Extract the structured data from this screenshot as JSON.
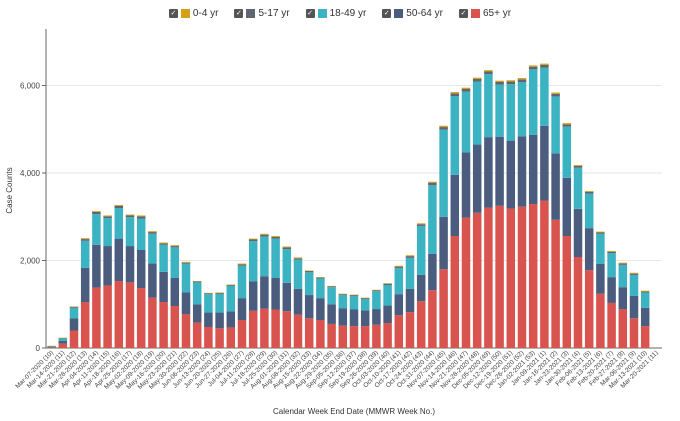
{
  "chart_data": {
    "type": "bar",
    "stacked": true,
    "title": "",
    "xlabel": "Calendar Week End Date (MMWR Week No.)",
    "ylabel": "Case Counts",
    "ylim": [
      0,
      7200
    ],
    "yticks": [
      0,
      2000,
      4000,
      6000
    ],
    "ytick_labels": [
      "0",
      "2,000",
      "4,000",
      "6,000"
    ],
    "grid": true,
    "legend_position": "top-center",
    "categories": [
      "Mar-07-2020 (10)",
      "Mar-14-2020 (11)",
      "Mar-21-2020 (12)",
      "Mar-28-2020 (13)",
      "Apr-04-2020 (14)",
      "Apr-11-2020 (15)",
      "Apr-18-2020 (16)",
      "Apr-25-2020 (17)",
      "May-02-2020 (18)",
      "May-09-2020 (19)",
      "May-16-2020 (20)",
      "May-23-2020 (21)",
      "May-30-2020 (22)",
      "Jun-06-2020 (23)",
      "Jun-13-2020 (24)",
      "Jun-20-2020 (25)",
      "Jun-27-2020 (26)",
      "Jul-04-2020 (27)",
      "Jul-11-2020 (28)",
      "Jul-18-2020 (29)",
      "Jul-25-2020 (30)",
      "Aug-01-2020 (31)",
      "Aug-08-2020 (32)",
      "Aug-15-2020 (33)",
      "Aug-22-2020 (34)",
      "Aug-29-2020 (35)",
      "Sep-05-2020 (36)",
      "Sep-12-2020 (37)",
      "Sep-19-2020 (38)",
      "Sep-26-2020 (39)",
      "Oct-03-2020 (40)",
      "Oct-10-2020 (41)",
      "Oct-17-2020 (42)",
      "Oct-24-2020 (43)",
      "Oct-31-2020 (44)",
      "Nov-07-2020 (45)",
      "Nov-14-2020 (46)",
      "Nov-21-2020 (47)",
      "Nov-28-2020 (48)",
      "Dec-05-2020 (49)",
      "Dec-12-2020 (50)",
      "Dec-19-2020 (51)",
      "Dec-26-2020 (52)",
      "Jan-02-2021 (53)",
      "Jan-09-2021 (1)",
      "Jan-16-2021 (2)",
      "Jan-23-2021 (3)",
      "Jan-30-2021 (4)",
      "Feb-06-2021 (5)",
      "Feb-13-2021 (6)",
      "Feb-20-2021 (7)",
      "Feb-27-2021 (8)",
      "Mar-06-2021 (9)",
      "Mar-13-2021 (10)",
      "Mar-20-2021 (11)"
    ],
    "series": [
      {
        "name": "65+ yr",
        "color": "#d9534f",
        "values": [
          10,
          100,
          400,
          1050,
          1380,
          1430,
          1530,
          1500,
          1370,
          1150,
          1050,
          960,
          770,
          580,
          480,
          450,
          470,
          640,
          850,
          900,
          880,
          840,
          760,
          680,
          640,
          550,
          510,
          500,
          500,
          530,
          570,
          750,
          820,
          1070,
          1320,
          1800,
          2560,
          2980,
          3090,
          3210,
          3250,
          3190,
          3230,
          3290,
          3370,
          2930,
          2560,
          2080,
          1780,
          1240,
          1030,
          890,
          680,
          500,
          0
        ]
      },
      {
        "name": "50-64 yr",
        "color": "#4a5d7e",
        "values": [
          10,
          60,
          280,
          780,
          980,
          900,
          970,
          830,
          870,
          780,
          690,
          640,
          500,
          420,
          330,
          360,
          370,
          500,
          670,
          740,
          720,
          650,
          590,
          530,
          500,
          450,
          400,
          380,
          360,
          360,
          400,
          480,
          530,
          600,
          830,
          1200,
          1400,
          1490,
          1560,
          1610,
          1580,
          1550,
          1610,
          1580,
          1710,
          1520,
          1330,
          1100,
          960,
          680,
          590,
          500,
          510,
          420,
          0
        ]
      },
      {
        "name": "18-49 yr",
        "color": "#3bb3c3",
        "values": [
          20,
          60,
          240,
          620,
          700,
          640,
          700,
          660,
          720,
          680,
          620,
          700,
          660,
          500,
          420,
          430,
          580,
          740,
          920,
          910,
          900,
          770,
          670,
          520,
          450,
          390,
          300,
          310,
          260,
          410,
          470,
          600,
          710,
          1120,
          1570,
          1990,
          1800,
          1390,
          1440,
          1440,
          1190,
          1290,
          1240,
          1500,
          1330,
          1300,
          1170,
          940,
          790,
          690,
          550,
          510,
          480,
          350,
          0
        ]
      },
      {
        "name": "5-17 yr",
        "color": "#5f6670",
        "values": [
          5,
          10,
          20,
          40,
          50,
          40,
          50,
          40,
          50,
          40,
          30,
          30,
          20,
          20,
          20,
          20,
          20,
          30,
          40,
          40,
          40,
          40,
          30,
          30,
          20,
          20,
          20,
          20,
          20,
          20,
          30,
          30,
          40,
          40,
          60,
          60,
          60,
          60,
          60,
          60,
          60,
          60,
          60,
          60,
          60,
          60,
          50,
          40,
          40,
          30,
          30,
          30,
          30,
          20,
          0
        ]
      },
      {
        "name": "0-4 yr",
        "color": "#d4a017",
        "values": [
          5,
          5,
          10,
          20,
          20,
          20,
          20,
          20,
          20,
          20,
          20,
          20,
          20,
          10,
          10,
          10,
          10,
          20,
          20,
          20,
          20,
          20,
          20,
          10,
          10,
          10,
          10,
          10,
          10,
          10,
          10,
          20,
          20,
          20,
          20,
          30,
          30,
          30,
          30,
          30,
          30,
          30,
          30,
          30,
          30,
          30,
          30,
          20,
          20,
          20,
          20,
          20,
          20,
          20,
          0
        ]
      }
    ]
  },
  "legend": [
    {
      "label": "0-4 yr",
      "color": "#d4a017",
      "check": "✓"
    },
    {
      "label": "5-17 yr",
      "color": "#5f6670",
      "check": "✓"
    },
    {
      "label": "18-49 yr",
      "color": "#3bb3c3",
      "check": "✓"
    },
    {
      "label": "50-64 yr",
      "color": "#4a5d7e",
      "check": "✓"
    },
    {
      "label": "65+ yr",
      "color": "#d9534f",
      "check": "✓"
    }
  ]
}
